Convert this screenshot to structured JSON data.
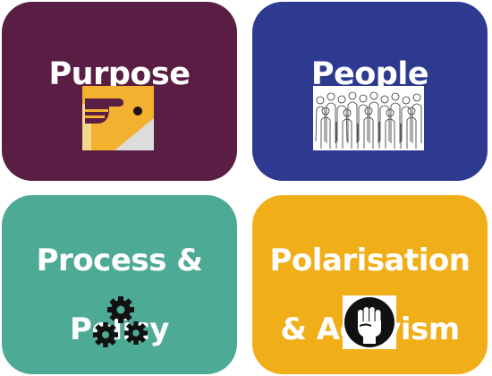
{
  "tiles": [
    {
      "title": "Purpose",
      "color": "#5a1e45",
      "icon": "pointing-hand-icon"
    },
    {
      "title": "People",
      "color": "#2d3a90",
      "icon": "crowd-sketch-icon"
    },
    {
      "title_lines": [
        "Process &",
        "Policy"
      ],
      "color": "#4daa95",
      "icon": "gears-icon"
    },
    {
      "title_lines": [
        "Polarisation",
        "& Activism"
      ],
      "color": "#f0ae18",
      "icon": "raised-fist-icon"
    }
  ]
}
